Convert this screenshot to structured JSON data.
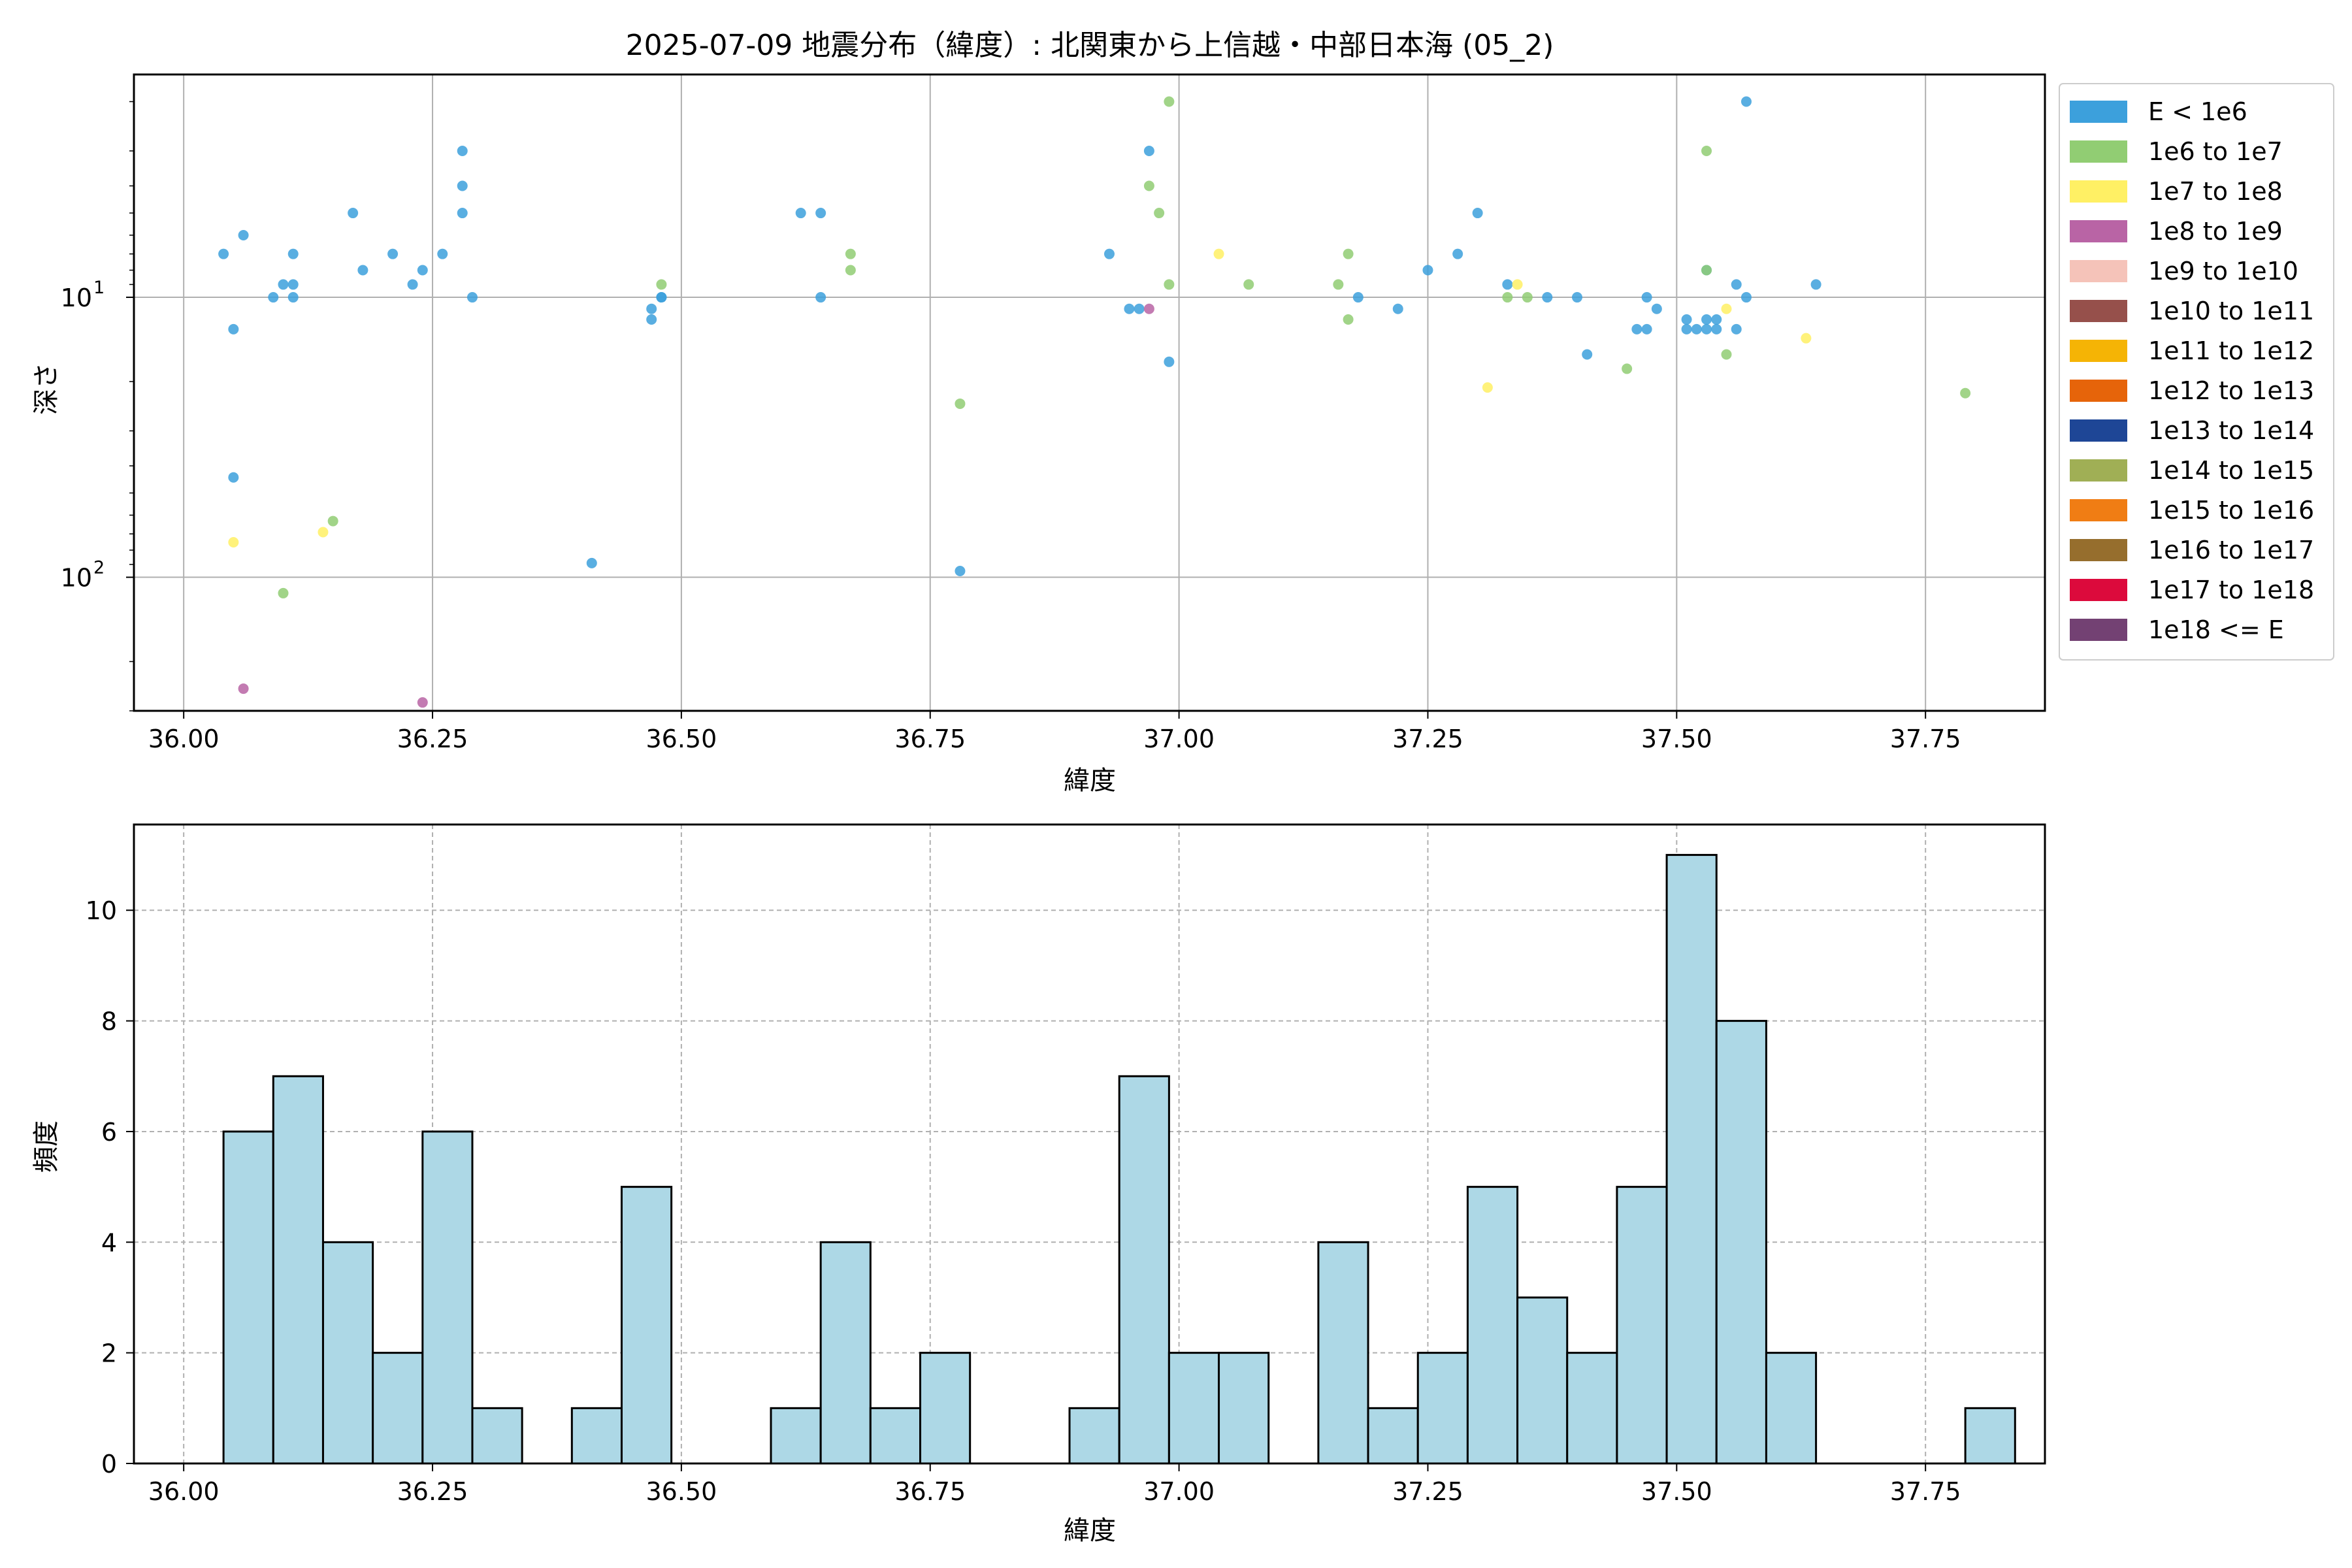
{
  "figure": {
    "title": "2025-07-09 地震分布（緯度）: 北関東から上信越・中部日本海 (05_2)"
  },
  "chart_data": [
    {
      "type": "scatter",
      "xlabel": "緯度",
      "ylabel": "深さ",
      "y_scale": "log",
      "y_inverted": true,
      "xlim": [
        35.95,
        37.87
      ],
      "ylim": [
        300,
        1.6
      ],
      "x_ticks": [
        36.0,
        36.25,
        36.5,
        36.75,
        37.0,
        37.25,
        37.5,
        37.75
      ],
      "x_tick_labels": [
        "36.00",
        "36.25",
        "36.50",
        "36.75",
        "37.00",
        "37.25",
        "37.50",
        "37.75"
      ],
      "y_ticks": [
        10,
        100
      ],
      "y_tick_labels": [
        {
          "base": "10",
          "exp": "1"
        },
        {
          "base": "10",
          "exp": "2"
        }
      ],
      "grid": true,
      "legend": {
        "placement": "outside-right",
        "entries": [
          {
            "label": "E < 1e6",
            "color": "#3ca0dc"
          },
          {
            "label": "1e6 to 1e7",
            "color": "#91cd73"
          },
          {
            "label": "1e7 to 1e8",
            "color": "#fff064"
          },
          {
            "label": "1e8 to 1e9",
            "color": "#b964a5"
          },
          {
            "label": "1e9 to 1e10",
            "color": "#f5c3b9"
          },
          {
            "label": "1e10 to 1e11",
            "color": "#96504b"
          },
          {
            "label": "1e11 to 1e12",
            "color": "#f5b405"
          },
          {
            "label": "1e12 to 1e13",
            "color": "#e6640a"
          },
          {
            "label": "1e13 to 1e14",
            "color": "#1e4696"
          },
          {
            "label": "1e14 to 1e15",
            "color": "#a0af55"
          },
          {
            "label": "1e15 to 1e16",
            "color": "#f07d14"
          },
          {
            "label": "1e16 to 1e17",
            "color": "#966e2d"
          },
          {
            "label": "1e17 to 1e18",
            "color": "#dc0a3c"
          },
          {
            "label": "1e18 <= E",
            "color": "#734173"
          }
        ]
      },
      "points": [
        {
          "x": 36.04,
          "y": 7,
          "c": 0
        },
        {
          "x": 36.06,
          "y": 6,
          "c": 0
        },
        {
          "x": 36.05,
          "y": 13,
          "c": 0
        },
        {
          "x": 36.05,
          "y": 44,
          "c": 0
        },
        {
          "x": 36.05,
          "y": 75,
          "c": 2
        },
        {
          "x": 36.06,
          "y": 250,
          "c": 3
        },
        {
          "x": 36.09,
          "y": 10,
          "c": 0
        },
        {
          "x": 36.1,
          "y": 9,
          "c": 0
        },
        {
          "x": 36.11,
          "y": 9,
          "c": 0
        },
        {
          "x": 36.11,
          "y": 10,
          "c": 0
        },
        {
          "x": 36.11,
          "y": 7,
          "c": 0
        },
        {
          "x": 36.1,
          "y": 114,
          "c": 1
        },
        {
          "x": 36.14,
          "y": 69,
          "c": 2
        },
        {
          "x": 36.15,
          "y": 63,
          "c": 1
        },
        {
          "x": 36.17,
          "y": 5,
          "c": 0
        },
        {
          "x": 36.18,
          "y": 8,
          "c": 0
        },
        {
          "x": 36.21,
          "y": 7,
          "c": 0
        },
        {
          "x": 36.23,
          "y": 9,
          "c": 0
        },
        {
          "x": 36.24,
          "y": 8,
          "c": 0
        },
        {
          "x": 36.24,
          "y": 280,
          "c": 3
        },
        {
          "x": 36.26,
          "y": 7,
          "c": 0
        },
        {
          "x": 36.28,
          "y": 3,
          "c": 0
        },
        {
          "x": 36.28,
          "y": 4,
          "c": 0
        },
        {
          "x": 36.28,
          "y": 5,
          "c": 0
        },
        {
          "x": 36.29,
          "y": 10,
          "c": 0
        },
        {
          "x": 36.41,
          "y": 89,
          "c": 0
        },
        {
          "x": 36.47,
          "y": 11,
          "c": 0
        },
        {
          "x": 36.47,
          "y": 12,
          "c": 0
        },
        {
          "x": 36.48,
          "y": 10,
          "c": 0
        },
        {
          "x": 36.48,
          "y": 10,
          "c": 0
        },
        {
          "x": 36.48,
          "y": 9,
          "c": 1
        },
        {
          "x": 36.62,
          "y": 5,
          "c": 0
        },
        {
          "x": 36.64,
          "y": 5,
          "c": 0
        },
        {
          "x": 36.64,
          "y": 10,
          "c": 0
        },
        {
          "x": 36.67,
          "y": 7,
          "c": 1
        },
        {
          "x": 36.67,
          "y": 8,
          "c": 1
        },
        {
          "x": 36.78,
          "y": 24,
          "c": 1
        },
        {
          "x": 36.78,
          "y": 95,
          "c": 0
        },
        {
          "x": 36.93,
          "y": 7,
          "c": 0
        },
        {
          "x": 36.95,
          "y": 11,
          "c": 0
        },
        {
          "x": 36.96,
          "y": 11,
          "c": 0
        },
        {
          "x": 36.97,
          "y": 11,
          "c": 3
        },
        {
          "x": 36.97,
          "y": 3,
          "c": 0
        },
        {
          "x": 36.97,
          "y": 4,
          "c": 1
        },
        {
          "x": 36.98,
          "y": 5,
          "c": 1
        },
        {
          "x": 36.99,
          "y": 2,
          "c": 1
        },
        {
          "x": 36.99,
          "y": 9,
          "c": 1
        },
        {
          "x": 36.99,
          "y": 17,
          "c": 0
        },
        {
          "x": 37.04,
          "y": 7,
          "c": 2
        },
        {
          "x": 37.07,
          "y": 9,
          "c": 1
        },
        {
          "x": 37.16,
          "y": 9,
          "c": 1
        },
        {
          "x": 37.17,
          "y": 7,
          "c": 1
        },
        {
          "x": 37.17,
          "y": 12,
          "c": 1
        },
        {
          "x": 37.18,
          "y": 10,
          "c": 0
        },
        {
          "x": 37.22,
          "y": 11,
          "c": 0
        },
        {
          "x": 37.25,
          "y": 8,
          "c": 0
        },
        {
          "x": 37.28,
          "y": 7,
          "c": 0
        },
        {
          "x": 37.3,
          "y": 5,
          "c": 0
        },
        {
          "x": 37.31,
          "y": 21,
          "c": 2
        },
        {
          "x": 37.33,
          "y": 9,
          "c": 0
        },
        {
          "x": 37.34,
          "y": 9,
          "c": 2
        },
        {
          "x": 37.33,
          "y": 10,
          "c": 1
        },
        {
          "x": 37.35,
          "y": 10,
          "c": 1
        },
        {
          "x": 37.37,
          "y": 10,
          "c": 0
        },
        {
          "x": 37.4,
          "y": 10,
          "c": 0
        },
        {
          "x": 37.41,
          "y": 16,
          "c": 0
        },
        {
          "x": 37.45,
          "y": 18,
          "c": 1
        },
        {
          "x": 37.46,
          "y": 13,
          "c": 0
        },
        {
          "x": 37.47,
          "y": 13,
          "c": 0
        },
        {
          "x": 37.47,
          "y": 10,
          "c": 0
        },
        {
          "x": 37.48,
          "y": 11,
          "c": 0
        },
        {
          "x": 37.51,
          "y": 12,
          "c": 0
        },
        {
          "x": 37.51,
          "y": 13,
          "c": 0
        },
        {
          "x": 37.52,
          "y": 13,
          "c": 0
        },
        {
          "x": 37.53,
          "y": 12,
          "c": 0
        },
        {
          "x": 37.53,
          "y": 13,
          "c": 0
        },
        {
          "x": 37.53,
          "y": 8,
          "c": 0
        },
        {
          "x": 37.53,
          "y": 8,
          "c": 1
        },
        {
          "x": 37.53,
          "y": 3,
          "c": 1
        },
        {
          "x": 37.54,
          "y": 12,
          "c": 0
        },
        {
          "x": 37.54,
          "y": 13,
          "c": 0
        },
        {
          "x": 37.55,
          "y": 11,
          "c": 2
        },
        {
          "x": 37.55,
          "y": 16,
          "c": 1
        },
        {
          "x": 37.56,
          "y": 13,
          "c": 0
        },
        {
          "x": 37.56,
          "y": 9,
          "c": 0
        },
        {
          "x": 37.57,
          "y": 2,
          "c": 0
        },
        {
          "x": 37.57,
          "y": 10,
          "c": 0
        },
        {
          "x": 37.63,
          "y": 14,
          "c": 2
        },
        {
          "x": 37.64,
          "y": 9,
          "c": 0
        },
        {
          "x": 37.79,
          "y": 22,
          "c": 1
        }
      ]
    },
    {
      "type": "bar",
      "subtype": "histogram",
      "xlabel": "緯度",
      "ylabel": "頻度",
      "xlim": [
        35.95,
        37.87
      ],
      "ylim": [
        0,
        11.55
      ],
      "x_ticks": [
        36.0,
        36.25,
        36.5,
        36.75,
        37.0,
        37.25,
        37.5,
        37.75
      ],
      "x_tick_labels": [
        "36.00",
        "36.25",
        "36.50",
        "36.75",
        "37.00",
        "37.25",
        "37.50",
        "37.75"
      ],
      "y_ticks": [
        0,
        2,
        4,
        6,
        8,
        10
      ],
      "y_tick_labels": [
        "0",
        "2",
        "4",
        "6",
        "8",
        "10"
      ],
      "grid": true,
      "bar_color": "#add8e6",
      "bins": [
        {
          "x0": 36.04,
          "x1": 36.09,
          "count": 6
        },
        {
          "x0": 36.09,
          "x1": 36.14,
          "count": 7
        },
        {
          "x0": 36.14,
          "x1": 36.19,
          "count": 4
        },
        {
          "x0": 36.19,
          "x1": 36.24,
          "count": 2
        },
        {
          "x0": 36.24,
          "x1": 36.29,
          "count": 6
        },
        {
          "x0": 36.29,
          "x1": 36.34,
          "count": 1
        },
        {
          "x0": 36.34,
          "x1": 36.39,
          "count": 0
        },
        {
          "x0": 36.39,
          "x1": 36.44,
          "count": 1
        },
        {
          "x0": 36.44,
          "x1": 36.49,
          "count": 5
        },
        {
          "x0": 36.49,
          "x1": 36.54,
          "count": 0
        },
        {
          "x0": 36.54,
          "x1": 36.59,
          "count": 0
        },
        {
          "x0": 36.59,
          "x1": 36.64,
          "count": 1
        },
        {
          "x0": 36.64,
          "x1": 36.69,
          "count": 4
        },
        {
          "x0": 36.69,
          "x1": 36.74,
          "count": 1
        },
        {
          "x0": 36.74,
          "x1": 36.79,
          "count": 2
        },
        {
          "x0": 36.79,
          "x1": 36.84,
          "count": 0
        },
        {
          "x0": 36.84,
          "x1": 36.89,
          "count": 0
        },
        {
          "x0": 36.89,
          "x1": 36.94,
          "count": 1
        },
        {
          "x0": 36.94,
          "x1": 36.99,
          "count": 7
        },
        {
          "x0": 36.99,
          "x1": 37.04,
          "count": 2
        },
        {
          "x0": 37.04,
          "x1": 37.09,
          "count": 2
        },
        {
          "x0": 37.09,
          "x1": 37.14,
          "count": 0
        },
        {
          "x0": 37.14,
          "x1": 37.19,
          "count": 4
        },
        {
          "x0": 37.19,
          "x1": 37.24,
          "count": 1
        },
        {
          "x0": 37.24,
          "x1": 37.29,
          "count": 2
        },
        {
          "x0": 37.29,
          "x1": 37.34,
          "count": 5
        },
        {
          "x0": 37.34,
          "x1": 37.39,
          "count": 3
        },
        {
          "x0": 37.39,
          "x1": 37.44,
          "count": 2
        },
        {
          "x0": 37.44,
          "x1": 37.49,
          "count": 5
        },
        {
          "x0": 37.49,
          "x1": 37.54,
          "count": 11
        },
        {
          "x0": 37.54,
          "x1": 37.59,
          "count": 8
        },
        {
          "x0": 37.59,
          "x1": 37.64,
          "count": 2
        },
        {
          "x0": 37.64,
          "x1": 37.69,
          "count": 0
        },
        {
          "x0": 37.69,
          "x1": 37.74,
          "count": 0
        },
        {
          "x0": 37.74,
          "x1": 37.79,
          "count": 0
        },
        {
          "x0": 37.79,
          "x1": 37.84,
          "count": 1
        }
      ]
    }
  ]
}
